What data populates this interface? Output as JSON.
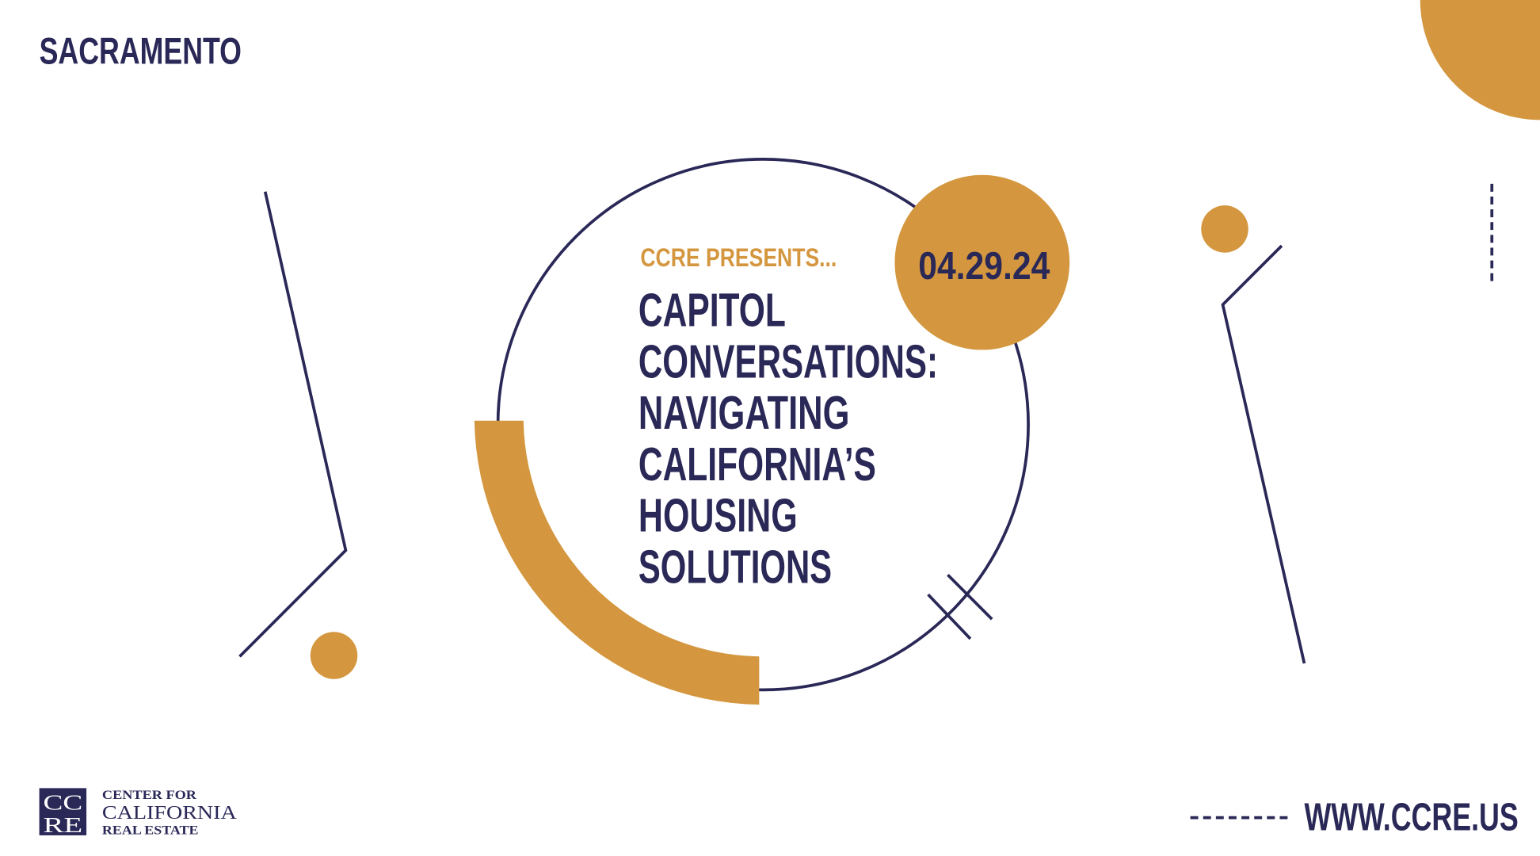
{
  "header": {
    "location": "SACRAMENTO"
  },
  "event": {
    "kicker": "CCRE PRESENTS...",
    "date": "04.29.24",
    "title_lines": [
      "CAPITOL",
      "CONVERSATIONS:",
      "NAVIGATING",
      "CALIFORNIA’S",
      "HOUSING",
      "SOLUTIONS"
    ]
  },
  "footer": {
    "logo_mark": [
      "CC",
      "RE"
    ],
    "logo_text": [
      "CENTER FOR",
      "CALIFORNIA",
      "REAL ESTATE"
    ],
    "website": "WWW.CCRE.US"
  }
}
